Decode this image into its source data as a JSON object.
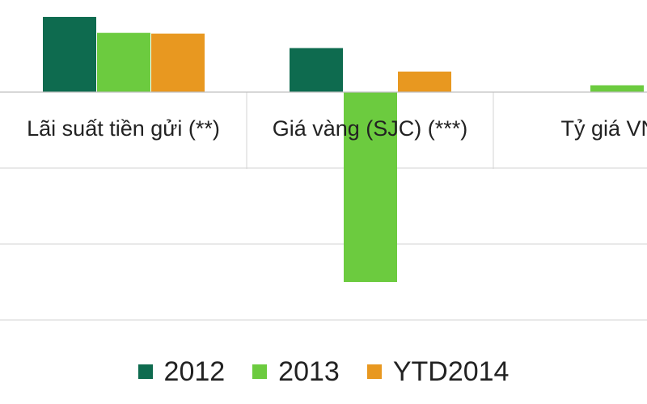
{
  "chart_data": {
    "type": "bar",
    "title": "",
    "xlabel": "",
    "ylabel": "",
    "categories": [
      "Lãi suất tiền gửi (**)",
      "Giá vàng (SJC) (***)",
      "Tỷ giá VNĐ"
    ],
    "series": [
      {
        "name": "2012",
        "color": "#0e6b4f",
        "values": [
          9.9,
          5.8,
          null
        ]
      },
      {
        "name": "2013",
        "color": "#6ccb3f",
        "values": [
          7.8,
          -25.0,
          0.9
        ]
      },
      {
        "name": "YTD2014",
        "color": "#e89820",
        "values": [
          7.7,
          2.7,
          null
        ]
      }
    ],
    "ylim": [
      -30,
      10
    ],
    "grid": true,
    "legend": "bottom"
  }
}
